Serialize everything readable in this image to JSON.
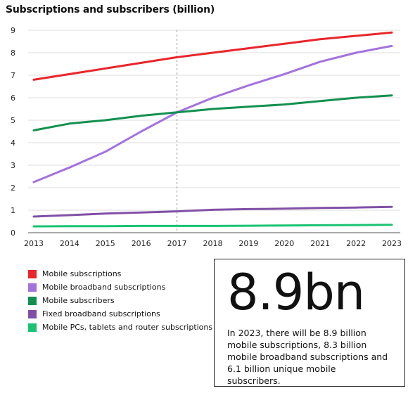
{
  "chart_data": {
    "type": "line",
    "title": "Subscriptions and subscribers (billion)",
    "x": [
      "2013",
      "2014",
      "2015",
      "2016",
      "2017",
      "2018",
      "2019",
      "2020",
      "2021",
      "2022",
      "2023"
    ],
    "ylim": [
      0,
      9
    ],
    "yticks": [
      0,
      1,
      2,
      3,
      4,
      5,
      6,
      7,
      8,
      9
    ],
    "grid": "horizontal",
    "marker_year": "2017",
    "series": [
      {
        "name": "Mobile subscriptions",
        "color": "#e8262b",
        "values": [
          6.8,
          7.05,
          7.3,
          7.55,
          7.8,
          8.0,
          8.2,
          8.4,
          8.6,
          8.75,
          8.9
        ]
      },
      {
        "name": "Mobile broadband subscriptions",
        "color": "#a372dd",
        "values": [
          2.25,
          2.9,
          3.6,
          4.5,
          5.35,
          6.0,
          6.55,
          7.05,
          7.6,
          8.0,
          8.3
        ]
      },
      {
        "name": "Mobile subscribers",
        "color": "#139050",
        "values": [
          4.55,
          4.85,
          5.0,
          5.2,
          5.35,
          5.5,
          5.6,
          5.7,
          5.85,
          6.0,
          6.1
        ]
      },
      {
        "name": "Fixed broadband subscriptions",
        "color": "#8150a6",
        "values": [
          0.72,
          0.78,
          0.85,
          0.9,
          0.95,
          1.02,
          1.05,
          1.07,
          1.1,
          1.12,
          1.15
        ]
      },
      {
        "name": "Mobile PCs, tablets and router subscriptions",
        "color": "#19c373",
        "values": [
          0.28,
          0.29,
          0.29,
          0.3,
          0.3,
          0.3,
          0.31,
          0.32,
          0.33,
          0.34,
          0.35
        ]
      }
    ],
    "legend_position": "bottom-left"
  },
  "callout": {
    "value": "8.9bn",
    "text": "In 2023, there will be 8.9 billion mobile subscriptions, 8.3 billion mobile broadband subscriptions and 6.1 billion unique mobile subscribers."
  }
}
